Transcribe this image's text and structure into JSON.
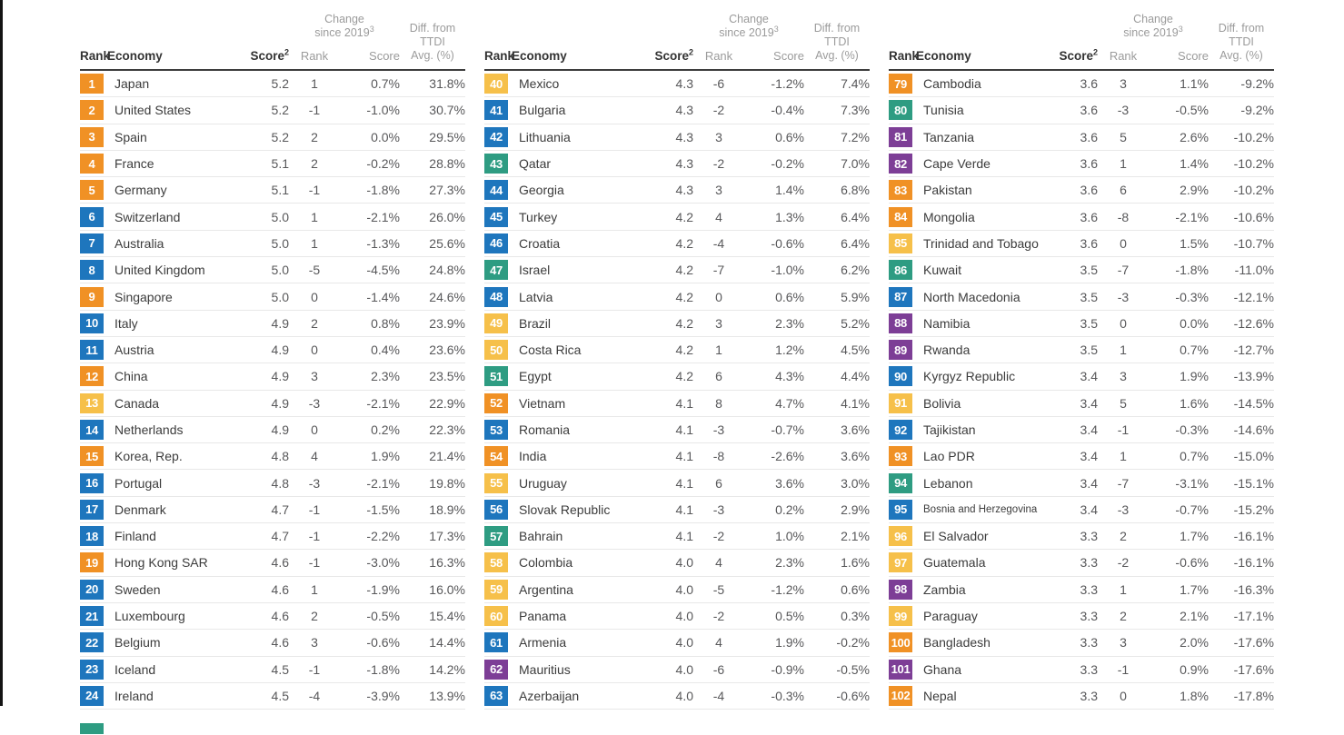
{
  "palette": {
    "orange": "#F09125",
    "blue": "#1E76BD",
    "yellow": "#F6C04A",
    "green": "#2E9C82",
    "purple": "#7D3E96"
  },
  "header": {
    "rank": "Rank",
    "economy": "Economy",
    "score": "Score",
    "score_sup": "2",
    "change_line1": "Change",
    "change_line2": "since 2019",
    "change_sup": "3",
    "change_rank": "Rank",
    "change_score": "Score",
    "diff_line1": "Diff. from",
    "diff_line2": "TTDI",
    "diff_line3": "Avg. (%)"
  },
  "tables": [
    {
      "partial_next_color": "green",
      "rows": [
        {
          "rank": "1",
          "economy": "Japan",
          "score": "5.2",
          "change_rank": "1",
          "change_score": "0.7%",
          "diff": "31.8%",
          "color": "orange"
        },
        {
          "rank": "2",
          "economy": "United States",
          "score": "5.2",
          "change_rank": "-1",
          "change_score": "-1.0%",
          "diff": "30.7%",
          "color": "orange"
        },
        {
          "rank": "3",
          "economy": "Spain",
          "score": "5.2",
          "change_rank": "2",
          "change_score": "0.0%",
          "diff": "29.5%",
          "color": "orange"
        },
        {
          "rank": "4",
          "economy": "France",
          "score": "5.1",
          "change_rank": "2",
          "change_score": "-0.2%",
          "diff": "28.8%",
          "color": "orange"
        },
        {
          "rank": "5",
          "economy": "Germany",
          "score": "5.1",
          "change_rank": "-1",
          "change_score": "-1.8%",
          "diff": "27.3%",
          "color": "orange"
        },
        {
          "rank": "6",
          "economy": "Switzerland",
          "score": "5.0",
          "change_rank": "1",
          "change_score": "-2.1%",
          "diff": "26.0%",
          "color": "blue"
        },
        {
          "rank": "7",
          "economy": "Australia",
          "score": "5.0",
          "change_rank": "1",
          "change_score": "-1.3%",
          "diff": "25.6%",
          "color": "blue"
        },
        {
          "rank": "8",
          "economy": "United Kingdom",
          "score": "5.0",
          "change_rank": "-5",
          "change_score": "-4.5%",
          "diff": "24.8%",
          "color": "blue"
        },
        {
          "rank": "9",
          "economy": "Singapore",
          "score": "5.0",
          "change_rank": "0",
          "change_score": "-1.4%",
          "diff": "24.6%",
          "color": "orange"
        },
        {
          "rank": "10",
          "economy": "Italy",
          "score": "4.9",
          "change_rank": "2",
          "change_score": "0.8%",
          "diff": "23.9%",
          "color": "blue"
        },
        {
          "rank": "11",
          "economy": "Austria",
          "score": "4.9",
          "change_rank": "0",
          "change_score": "0.4%",
          "diff": "23.6%",
          "color": "blue"
        },
        {
          "rank": "12",
          "economy": "China",
          "score": "4.9",
          "change_rank": "3",
          "change_score": "2.3%",
          "diff": "23.5%",
          "color": "orange"
        },
        {
          "rank": "13",
          "economy": "Canada",
          "score": "4.9",
          "change_rank": "-3",
          "change_score": "-2.1%",
          "diff": "22.9%",
          "color": "yellow"
        },
        {
          "rank": "14",
          "economy": "Netherlands",
          "score": "4.9",
          "change_rank": "0",
          "change_score": "0.2%",
          "diff": "22.3%",
          "color": "blue"
        },
        {
          "rank": "15",
          "economy": "Korea, Rep.",
          "score": "4.8",
          "change_rank": "4",
          "change_score": "1.9%",
          "diff": "21.4%",
          "color": "orange"
        },
        {
          "rank": "16",
          "economy": "Portugal",
          "score": "4.8",
          "change_rank": "-3",
          "change_score": "-2.1%",
          "diff": "19.8%",
          "color": "blue"
        },
        {
          "rank": "17",
          "economy": "Denmark",
          "score": "4.7",
          "change_rank": "-1",
          "change_score": "-1.5%",
          "diff": "18.9%",
          "color": "blue"
        },
        {
          "rank": "18",
          "economy": "Finland",
          "score": "4.7",
          "change_rank": "-1",
          "change_score": "-2.2%",
          "diff": "17.3%",
          "color": "blue"
        },
        {
          "rank": "19",
          "economy": "Hong Kong SAR",
          "score": "4.6",
          "change_rank": "-1",
          "change_score": "-3.0%",
          "diff": "16.3%",
          "color": "orange"
        },
        {
          "rank": "20",
          "economy": "Sweden",
          "score": "4.6",
          "change_rank": "1",
          "change_score": "-1.9%",
          "diff": "16.0%",
          "color": "blue"
        },
        {
          "rank": "21",
          "economy": "Luxembourg",
          "score": "4.6",
          "change_rank": "2",
          "change_score": "-0.5%",
          "diff": "15.4%",
          "color": "blue"
        },
        {
          "rank": "22",
          "economy": "Belgium",
          "score": "4.6",
          "change_rank": "3",
          "change_score": "-0.6%",
          "diff": "14.4%",
          "color": "blue"
        },
        {
          "rank": "23",
          "economy": "Iceland",
          "score": "4.5",
          "change_rank": "-1",
          "change_score": "-1.8%",
          "diff": "14.2%",
          "color": "blue"
        },
        {
          "rank": "24",
          "economy": "Ireland",
          "score": "4.5",
          "change_rank": "-4",
          "change_score": "-3.9%",
          "diff": "13.9%",
          "color": "blue"
        }
      ]
    },
    {
      "rows": [
        {
          "rank": "40",
          "economy": "Mexico",
          "score": "4.3",
          "change_rank": "-6",
          "change_score": "-1.2%",
          "diff": "7.4%",
          "color": "yellow"
        },
        {
          "rank": "41",
          "economy": "Bulgaria",
          "score": "4.3",
          "change_rank": "-2",
          "change_score": "-0.4%",
          "diff": "7.3%",
          "color": "blue"
        },
        {
          "rank": "42",
          "economy": "Lithuania",
          "score": "4.3",
          "change_rank": "3",
          "change_score": "0.6%",
          "diff": "7.2%",
          "color": "blue"
        },
        {
          "rank": "43",
          "economy": "Qatar",
          "score": "4.3",
          "change_rank": "-2",
          "change_score": "-0.2%",
          "diff": "7.0%",
          "color": "green"
        },
        {
          "rank": "44",
          "economy": "Georgia",
          "score": "4.3",
          "change_rank": "3",
          "change_score": "1.4%",
          "diff": "6.8%",
          "color": "blue"
        },
        {
          "rank": "45",
          "economy": "Turkey",
          "score": "4.2",
          "change_rank": "4",
          "change_score": "1.3%",
          "diff": "6.4%",
          "color": "blue"
        },
        {
          "rank": "46",
          "economy": "Croatia",
          "score": "4.2",
          "change_rank": "-4",
          "change_score": "-0.6%",
          "diff": "6.4%",
          "color": "blue"
        },
        {
          "rank": "47",
          "economy": "Israel",
          "score": "4.2",
          "change_rank": "-7",
          "change_score": "-1.0%",
          "diff": "6.2%",
          "color": "green"
        },
        {
          "rank": "48",
          "economy": "Latvia",
          "score": "4.2",
          "change_rank": "0",
          "change_score": "0.6%",
          "diff": "5.9%",
          "color": "blue"
        },
        {
          "rank": "49",
          "economy": "Brazil",
          "score": "4.2",
          "change_rank": "3",
          "change_score": "2.3%",
          "diff": "5.2%",
          "color": "yellow"
        },
        {
          "rank": "50",
          "economy": "Costa Rica",
          "score": "4.2",
          "change_rank": "1",
          "change_score": "1.2%",
          "diff": "4.5%",
          "color": "yellow"
        },
        {
          "rank": "51",
          "economy": "Egypt",
          "score": "4.2",
          "change_rank": "6",
          "change_score": "4.3%",
          "diff": "4.4%",
          "color": "green"
        },
        {
          "rank": "52",
          "economy": "Vietnam",
          "score": "4.1",
          "change_rank": "8",
          "change_score": "4.7%",
          "diff": "4.1%",
          "color": "orange"
        },
        {
          "rank": "53",
          "economy": "Romania",
          "score": "4.1",
          "change_rank": "-3",
          "change_score": "-0.7%",
          "diff": "3.6%",
          "color": "blue"
        },
        {
          "rank": "54",
          "economy": "India",
          "score": "4.1",
          "change_rank": "-8",
          "change_score": "-2.6%",
          "diff": "3.6%",
          "color": "orange"
        },
        {
          "rank": "55",
          "economy": "Uruguay",
          "score": "4.1",
          "change_rank": "6",
          "change_score": "3.6%",
          "diff": "3.0%",
          "color": "yellow"
        },
        {
          "rank": "56",
          "economy": "Slovak Republic",
          "score": "4.1",
          "change_rank": "-3",
          "change_score": "0.2%",
          "diff": "2.9%",
          "color": "blue"
        },
        {
          "rank": "57",
          "economy": "Bahrain",
          "score": "4.1",
          "change_rank": "-2",
          "change_score": "1.0%",
          "diff": "2.1%",
          "color": "green"
        },
        {
          "rank": "58",
          "economy": "Colombia",
          "score": "4.0",
          "change_rank": "4",
          "change_score": "2.3%",
          "diff": "1.6%",
          "color": "yellow"
        },
        {
          "rank": "59",
          "economy": "Argentina",
          "score": "4.0",
          "change_rank": "-5",
          "change_score": "-1.2%",
          "diff": "0.6%",
          "color": "yellow"
        },
        {
          "rank": "60",
          "economy": "Panama",
          "score": "4.0",
          "change_rank": "-2",
          "change_score": "0.5%",
          "diff": "0.3%",
          "color": "yellow"
        },
        {
          "rank": "61",
          "economy": "Armenia",
          "score": "4.0",
          "change_rank": "4",
          "change_score": "1.9%",
          "diff": "-0.2%",
          "color": "blue"
        },
        {
          "rank": "62",
          "economy": "Mauritius",
          "score": "4.0",
          "change_rank": "-6",
          "change_score": "-0.9%",
          "diff": "-0.5%",
          "color": "purple"
        },
        {
          "rank": "63",
          "economy": "Azerbaijan",
          "score": "4.0",
          "change_rank": "-4",
          "change_score": "-0.3%",
          "diff": "-0.6%",
          "color": "blue"
        }
      ]
    },
    {
      "rows": [
        {
          "rank": "79",
          "economy": "Cambodia",
          "score": "3.6",
          "change_rank": "3",
          "change_score": "1.1%",
          "diff": "-9.2%",
          "color": "orange"
        },
        {
          "rank": "80",
          "economy": "Tunisia",
          "score": "3.6",
          "change_rank": "-3",
          "change_score": "-0.5%",
          "diff": "-9.2%",
          "color": "green"
        },
        {
          "rank": "81",
          "economy": "Tanzania",
          "score": "3.6",
          "change_rank": "5",
          "change_score": "2.6%",
          "diff": "-10.2%",
          "color": "purple"
        },
        {
          "rank": "82",
          "economy": "Cape Verde",
          "score": "3.6",
          "change_rank": "1",
          "change_score": "1.4%",
          "diff": "-10.2%",
          "color": "purple"
        },
        {
          "rank": "83",
          "economy": "Pakistan",
          "score": "3.6",
          "change_rank": "6",
          "change_score": "2.9%",
          "diff": "-10.2%",
          "color": "orange"
        },
        {
          "rank": "84",
          "economy": "Mongolia",
          "score": "3.6",
          "change_rank": "-8",
          "change_score": "-2.1%",
          "diff": "-10.6%",
          "color": "orange"
        },
        {
          "rank": "85",
          "economy": "Trinidad and Tobago",
          "score": "3.6",
          "change_rank": "0",
          "change_score": "1.5%",
          "diff": "-10.7%",
          "color": "yellow"
        },
        {
          "rank": "86",
          "economy": "Kuwait",
          "score": "3.5",
          "change_rank": "-7",
          "change_score": "-1.8%",
          "diff": "-11.0%",
          "color": "green"
        },
        {
          "rank": "87",
          "economy": "North Macedonia",
          "score": "3.5",
          "change_rank": "-3",
          "change_score": "-0.3%",
          "diff": "-12.1%",
          "color": "blue"
        },
        {
          "rank": "88",
          "economy": "Namibia",
          "score": "3.5",
          "change_rank": "0",
          "change_score": "0.0%",
          "diff": "-12.6%",
          "color": "purple"
        },
        {
          "rank": "89",
          "economy": "Rwanda",
          "score": "3.5",
          "change_rank": "1",
          "change_score": "0.7%",
          "diff": "-12.7%",
          "color": "purple"
        },
        {
          "rank": "90",
          "economy": "Kyrgyz Republic",
          "score": "3.4",
          "change_rank": "3",
          "change_score": "1.9%",
          "diff": "-13.9%",
          "color": "blue"
        },
        {
          "rank": "91",
          "economy": "Bolivia",
          "score": "3.4",
          "change_rank": "5",
          "change_score": "1.6%",
          "diff": "-14.5%",
          "color": "yellow"
        },
        {
          "rank": "92",
          "economy": "Tajikistan",
          "score": "3.4",
          "change_rank": "-1",
          "change_score": "-0.3%",
          "diff": "-14.6%",
          "color": "blue"
        },
        {
          "rank": "93",
          "economy": "Lao PDR",
          "score": "3.4",
          "change_rank": "1",
          "change_score": "0.7%",
          "diff": "-15.0%",
          "color": "orange"
        },
        {
          "rank": "94",
          "economy": "Lebanon",
          "score": "3.4",
          "change_rank": "-7",
          "change_score": "-3.1%",
          "diff": "-15.1%",
          "color": "green"
        },
        {
          "rank": "95",
          "economy": "Bosnia and Herzegovina",
          "score": "3.4",
          "change_rank": "-3",
          "change_score": "-0.7%",
          "diff": "-15.2%",
          "color": "blue"
        },
        {
          "rank": "96",
          "economy": "El Salvador",
          "score": "3.3",
          "change_rank": "2",
          "change_score": "1.7%",
          "diff": "-16.1%",
          "color": "yellow"
        },
        {
          "rank": "97",
          "economy": "Guatemala",
          "score": "3.3",
          "change_rank": "-2",
          "change_score": "-0.6%",
          "diff": "-16.1%",
          "color": "yellow"
        },
        {
          "rank": "98",
          "economy": "Zambia",
          "score": "3.3",
          "change_rank": "1",
          "change_score": "1.7%",
          "diff": "-16.3%",
          "color": "purple"
        },
        {
          "rank": "99",
          "economy": "Paraguay",
          "score": "3.3",
          "change_rank": "2",
          "change_score": "2.1%",
          "diff": "-17.1%",
          "color": "yellow"
        },
        {
          "rank": "100",
          "economy": "Bangladesh",
          "score": "3.3",
          "change_rank": "3",
          "change_score": "2.0%",
          "diff": "-17.6%",
          "color": "orange"
        },
        {
          "rank": "101",
          "economy": "Ghana",
          "score": "3.3",
          "change_rank": "-1",
          "change_score": "0.9%",
          "diff": "-17.6%",
          "color": "purple"
        },
        {
          "rank": "102",
          "economy": "Nepal",
          "score": "3.3",
          "change_rank": "0",
          "change_score": "1.8%",
          "diff": "-17.8%",
          "color": "orange"
        }
      ]
    }
  ]
}
